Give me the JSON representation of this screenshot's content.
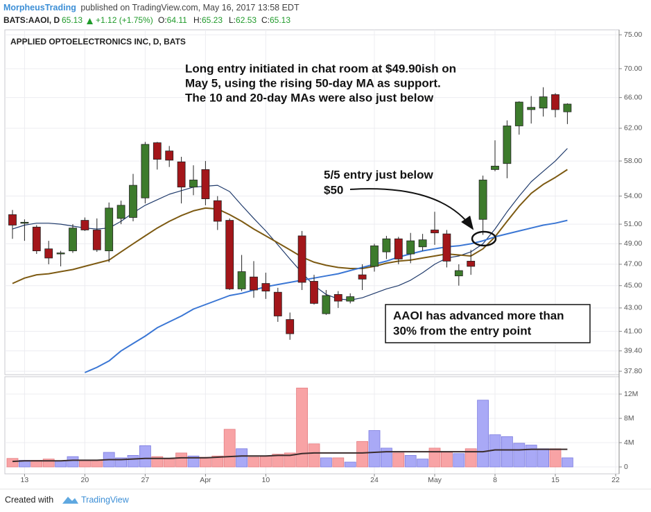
{
  "header": {
    "author": "MorpheusTrading",
    "published": "published on TradingView.com, May 16, 2017 13:58 EDT",
    "symbol": "BATS:AAOI, D",
    "last": "65.13",
    "change": "+1.12 (+1.75%)",
    "ohlc": [
      {
        "label": "O:",
        "value": "64.11"
      },
      {
        "label": "H:",
        "value": "65.23"
      },
      {
        "label": "L:",
        "value": "62.53"
      },
      {
        "label": "C:",
        "value": "65.13"
      }
    ]
  },
  "chart_data": [
    {
      "type": "candlestick",
      "title": "APPLIED OPTOELECTRONICS INC, D, BATS",
      "categories": [
        null,
        "13",
        null,
        null,
        null,
        null,
        "20",
        null,
        null,
        null,
        null,
        "27",
        null,
        null,
        null,
        null,
        "Apr",
        null,
        null,
        null,
        null,
        "10",
        null,
        null,
        null,
        null,
        null,
        null,
        null,
        null,
        "24",
        null,
        null,
        null,
        null,
        "May",
        null,
        null,
        null,
        null,
        "8",
        null,
        null,
        null,
        null,
        "15",
        null,
        null,
        null,
        null,
        "22"
      ],
      "open": [
        52.0,
        51.1,
        50.7,
        48.5,
        48.0,
        48.3,
        51.4,
        50.4,
        48.3,
        51.6,
        51.7,
        53.8,
        60.2,
        59.2,
        57.9,
        55.0,
        57.0,
        53.5,
        51.4,
        44.7,
        45.8,
        45.2,
        44.4,
        42.0,
        49.8,
        45.4,
        42.5,
        44.2,
        43.6,
        46.0,
        46.8,
        48.2,
        49.5,
        48.0,
        48.7,
        50.4,
        50.0,
        45.9,
        47.3,
        51.5,
        57.0,
        57.7,
        62.3,
        64.4,
        64.6,
        66.4,
        64.11,
        null,
        null,
        null,
        null
      ],
      "high": [
        52.5,
        51.5,
        50.9,
        49.3,
        48.3,
        51.0,
        51.7,
        51.6,
        53.3,
        53.5,
        56.5,
        60.3,
        60.3,
        59.8,
        58.5,
        57.5,
        58.0,
        54.0,
        51.6,
        47.9,
        47.3,
        46.2,
        44.8,
        42.6,
        50.3,
        46.0,
        44.6,
        44.5,
        44.3,
        47.0,
        49.0,
        49.8,
        49.7,
        50.1,
        50.0,
        52.3,
        50.4,
        47.0,
        48.4,
        56.3,
        60.5,
        63.0,
        65.5,
        66.2,
        67.4,
        66.6,
        65.23,
        null,
        null,
        null,
        null
      ],
      "low": [
        49.5,
        49.3,
        48.0,
        47.0,
        46.8,
        48.1,
        50.3,
        48.2,
        47.2,
        51.0,
        51.3,
        53.2,
        57.0,
        57.3,
        53.2,
        54.1,
        53.0,
        50.4,
        44.6,
        44.5,
        43.9,
        43.8,
        41.8,
        40.3,
        44.6,
        43.3,
        42.4,
        43.0,
        43.4,
        44.6,
        46.3,
        47.5,
        47.0,
        47.1,
        48.3,
        48.9,
        46.7,
        45.0,
        46.0,
        49.9,
        56.8,
        56.0,
        61.2,
        62.6,
        63.5,
        63.4,
        62.53,
        null,
        null,
        null,
        null
      ],
      "close": [
        50.9,
        51.2,
        48.3,
        47.6,
        48.1,
        50.6,
        50.4,
        48.4,
        52.7,
        53.0,
        55.2,
        60.0,
        58.2,
        58.1,
        55.0,
        55.8,
        53.7,
        51.3,
        44.7,
        46.3,
        44.6,
        44.5,
        42.3,
        40.8,
        45.3,
        43.4,
        44.1,
        43.6,
        44.0,
        45.6,
        48.8,
        49.5,
        47.5,
        49.3,
        49.4,
        50.1,
        47.3,
        46.4,
        46.8,
        55.8,
        57.4,
        62.3,
        65.4,
        64.7,
        66.1,
        64.4,
        65.13,
        null,
        null,
        null,
        null
      ],
      "up_color": "#3d7b2c",
      "down_color": "#a3161a",
      "series": [
        {
          "color": "#1f3a6b",
          "values": [
            50.5,
            50.9,
            51.1,
            51.1,
            51.0,
            50.8,
            50.6,
            50.5,
            50.6,
            51.3,
            52.2,
            53.0,
            53.6,
            54.2,
            54.6,
            55.0,
            55.1,
            55.2,
            54.5,
            53.0,
            51.6,
            50.3,
            48.9,
            47.5,
            46.2,
            45.0,
            44.2,
            43.8,
            43.7,
            43.9,
            44.3,
            44.7,
            45.0,
            45.5,
            46.2,
            47.0,
            47.6,
            47.8,
            48.2,
            49.0,
            50.5,
            52.3,
            54.0,
            55.6,
            56.8,
            58.0,
            59.5,
            null,
            null,
            null,
            null
          ]
        },
        {
          "color": "#7d5a12",
          "values": [
            45.2,
            45.7,
            46.0,
            46.1,
            46.3,
            46.5,
            46.8,
            47.1,
            47.4,
            48.2,
            49.0,
            49.8,
            50.6,
            51.3,
            51.9,
            52.4,
            52.7,
            52.6,
            52.0,
            51.3,
            50.5,
            49.8,
            49.1,
            48.4,
            47.7,
            47.2,
            46.9,
            46.7,
            46.6,
            46.6,
            46.8,
            47.1,
            47.3,
            47.4,
            47.6,
            47.8,
            48.0,
            47.9,
            47.8,
            48.5,
            49.7,
            51.3,
            52.9,
            54.3,
            55.3,
            56.1,
            57.0,
            null,
            null,
            null,
            null
          ]
        },
        {
          "color": "#3a76d4",
          "values": [
            null,
            null,
            null,
            null,
            null,
            null,
            37.7,
            38.1,
            38.6,
            39.4,
            40.0,
            40.6,
            41.3,
            41.8,
            42.3,
            42.9,
            43.3,
            43.7,
            44.1,
            44.3,
            44.6,
            44.9,
            45.1,
            45.3,
            45.5,
            45.7,
            45.9,
            46.1,
            46.4,
            46.7,
            47.0,
            47.3,
            47.7,
            48.0,
            48.3,
            48.5,
            48.7,
            48.8,
            49.0,
            49.3,
            49.7,
            50.0,
            50.3,
            50.6,
            50.9,
            51.1,
            51.4,
            null,
            null,
            null,
            null
          ]
        }
      ],
      "log_scale": true,
      "grid": true,
      "ylim": [
        37.54,
        75.76
      ],
      "yticks": [
        {
          "value": 37.8,
          "label": "37.80"
        },
        {
          "value": 39.4,
          "label": "39.40"
        },
        {
          "value": 41,
          "label": "41.00"
        },
        {
          "value": 43,
          "label": "43.00"
        },
        {
          "value": 45,
          "label": "45.00"
        },
        {
          "value": 47,
          "label": "47.00"
        },
        {
          "value": 49,
          "label": "49.00"
        },
        {
          "value": 51,
          "label": "51.00"
        },
        {
          "value": 54,
          "label": "54.00"
        },
        {
          "value": 58,
          "label": "58.00"
        },
        {
          "value": 62,
          "label": "62.00"
        },
        {
          "value": 66,
          "label": "66.00"
        },
        {
          "value": 70,
          "label": "70.00"
        },
        {
          "value": 75,
          "label": "75.00"
        }
      ],
      "annotations": [
        {
          "lines": [
            "Long entry initiated in chat room at $49.90ish on",
            "May 5, using the rising 50-day MA as support.",
            "The 10 and 20-day MAs were also just below"
          ]
        },
        {
          "lines": [
            "5/5 entry just below",
            "$50"
          ]
        },
        {
          "lines": [
            "AAOI has advanced more than",
            "30% from the entry point"
          ]
        }
      ]
    },
    {
      "type": "bar",
      "values": [
        1.4,
        1.1,
        1.1,
        1.3,
        1.0,
        1.7,
        1.1,
        1.1,
        2.4,
        1.5,
        1.9,
        3.5,
        1.7,
        1.3,
        2.3,
        1.8,
        1.6,
        1.8,
        6.2,
        3.0,
        1.6,
        1.8,
        2.1,
        2.3,
        13.0,
        3.8,
        1.5,
        1.5,
        0.8,
        4.2,
        6.0,
        3.1,
        2.3,
        1.9,
        1.3,
        3.1,
        2.5,
        2.2,
        3.0,
        11.0,
        5.3,
        5.0,
        3.9,
        3.6,
        3.0,
        3.0,
        1.5,
        null,
        null,
        null,
        null
      ],
      "up_color": "#a9a9f6",
      "down_color": "#f8a3a5",
      "series": [
        {
          "color": "#3a2c2c",
          "values": [
            0.9,
            1.0,
            1.0,
            1.0,
            1.0,
            1.1,
            1.1,
            1.1,
            1.2,
            1.2,
            1.3,
            1.4,
            1.4,
            1.4,
            1.5,
            1.5,
            1.5,
            1.6,
            1.7,
            1.8,
            1.8,
            1.8,
            1.9,
            1.9,
            2.2,
            2.3,
            2.3,
            2.3,
            2.3,
            2.3,
            2.4,
            2.5,
            2.5,
            2.5,
            2.5,
            2.5,
            2.5,
            2.5,
            2.5,
            2.5,
            2.8,
            2.8,
            2.8,
            2.9,
            2.9,
            2.9,
            2.9,
            null,
            null,
            null,
            null
          ]
        }
      ],
      "grid": true,
      "ylim": [
        -1.14,
        14.86
      ],
      "yticks": [
        0,
        {
          "value": 4,
          "label": "4M"
        },
        {
          "value": 8,
          "label": "8M"
        },
        {
          "value": 12,
          "label": "12M"
        }
      ]
    }
  ],
  "footer": {
    "created": "Created with",
    "brand": "TradingView"
  }
}
